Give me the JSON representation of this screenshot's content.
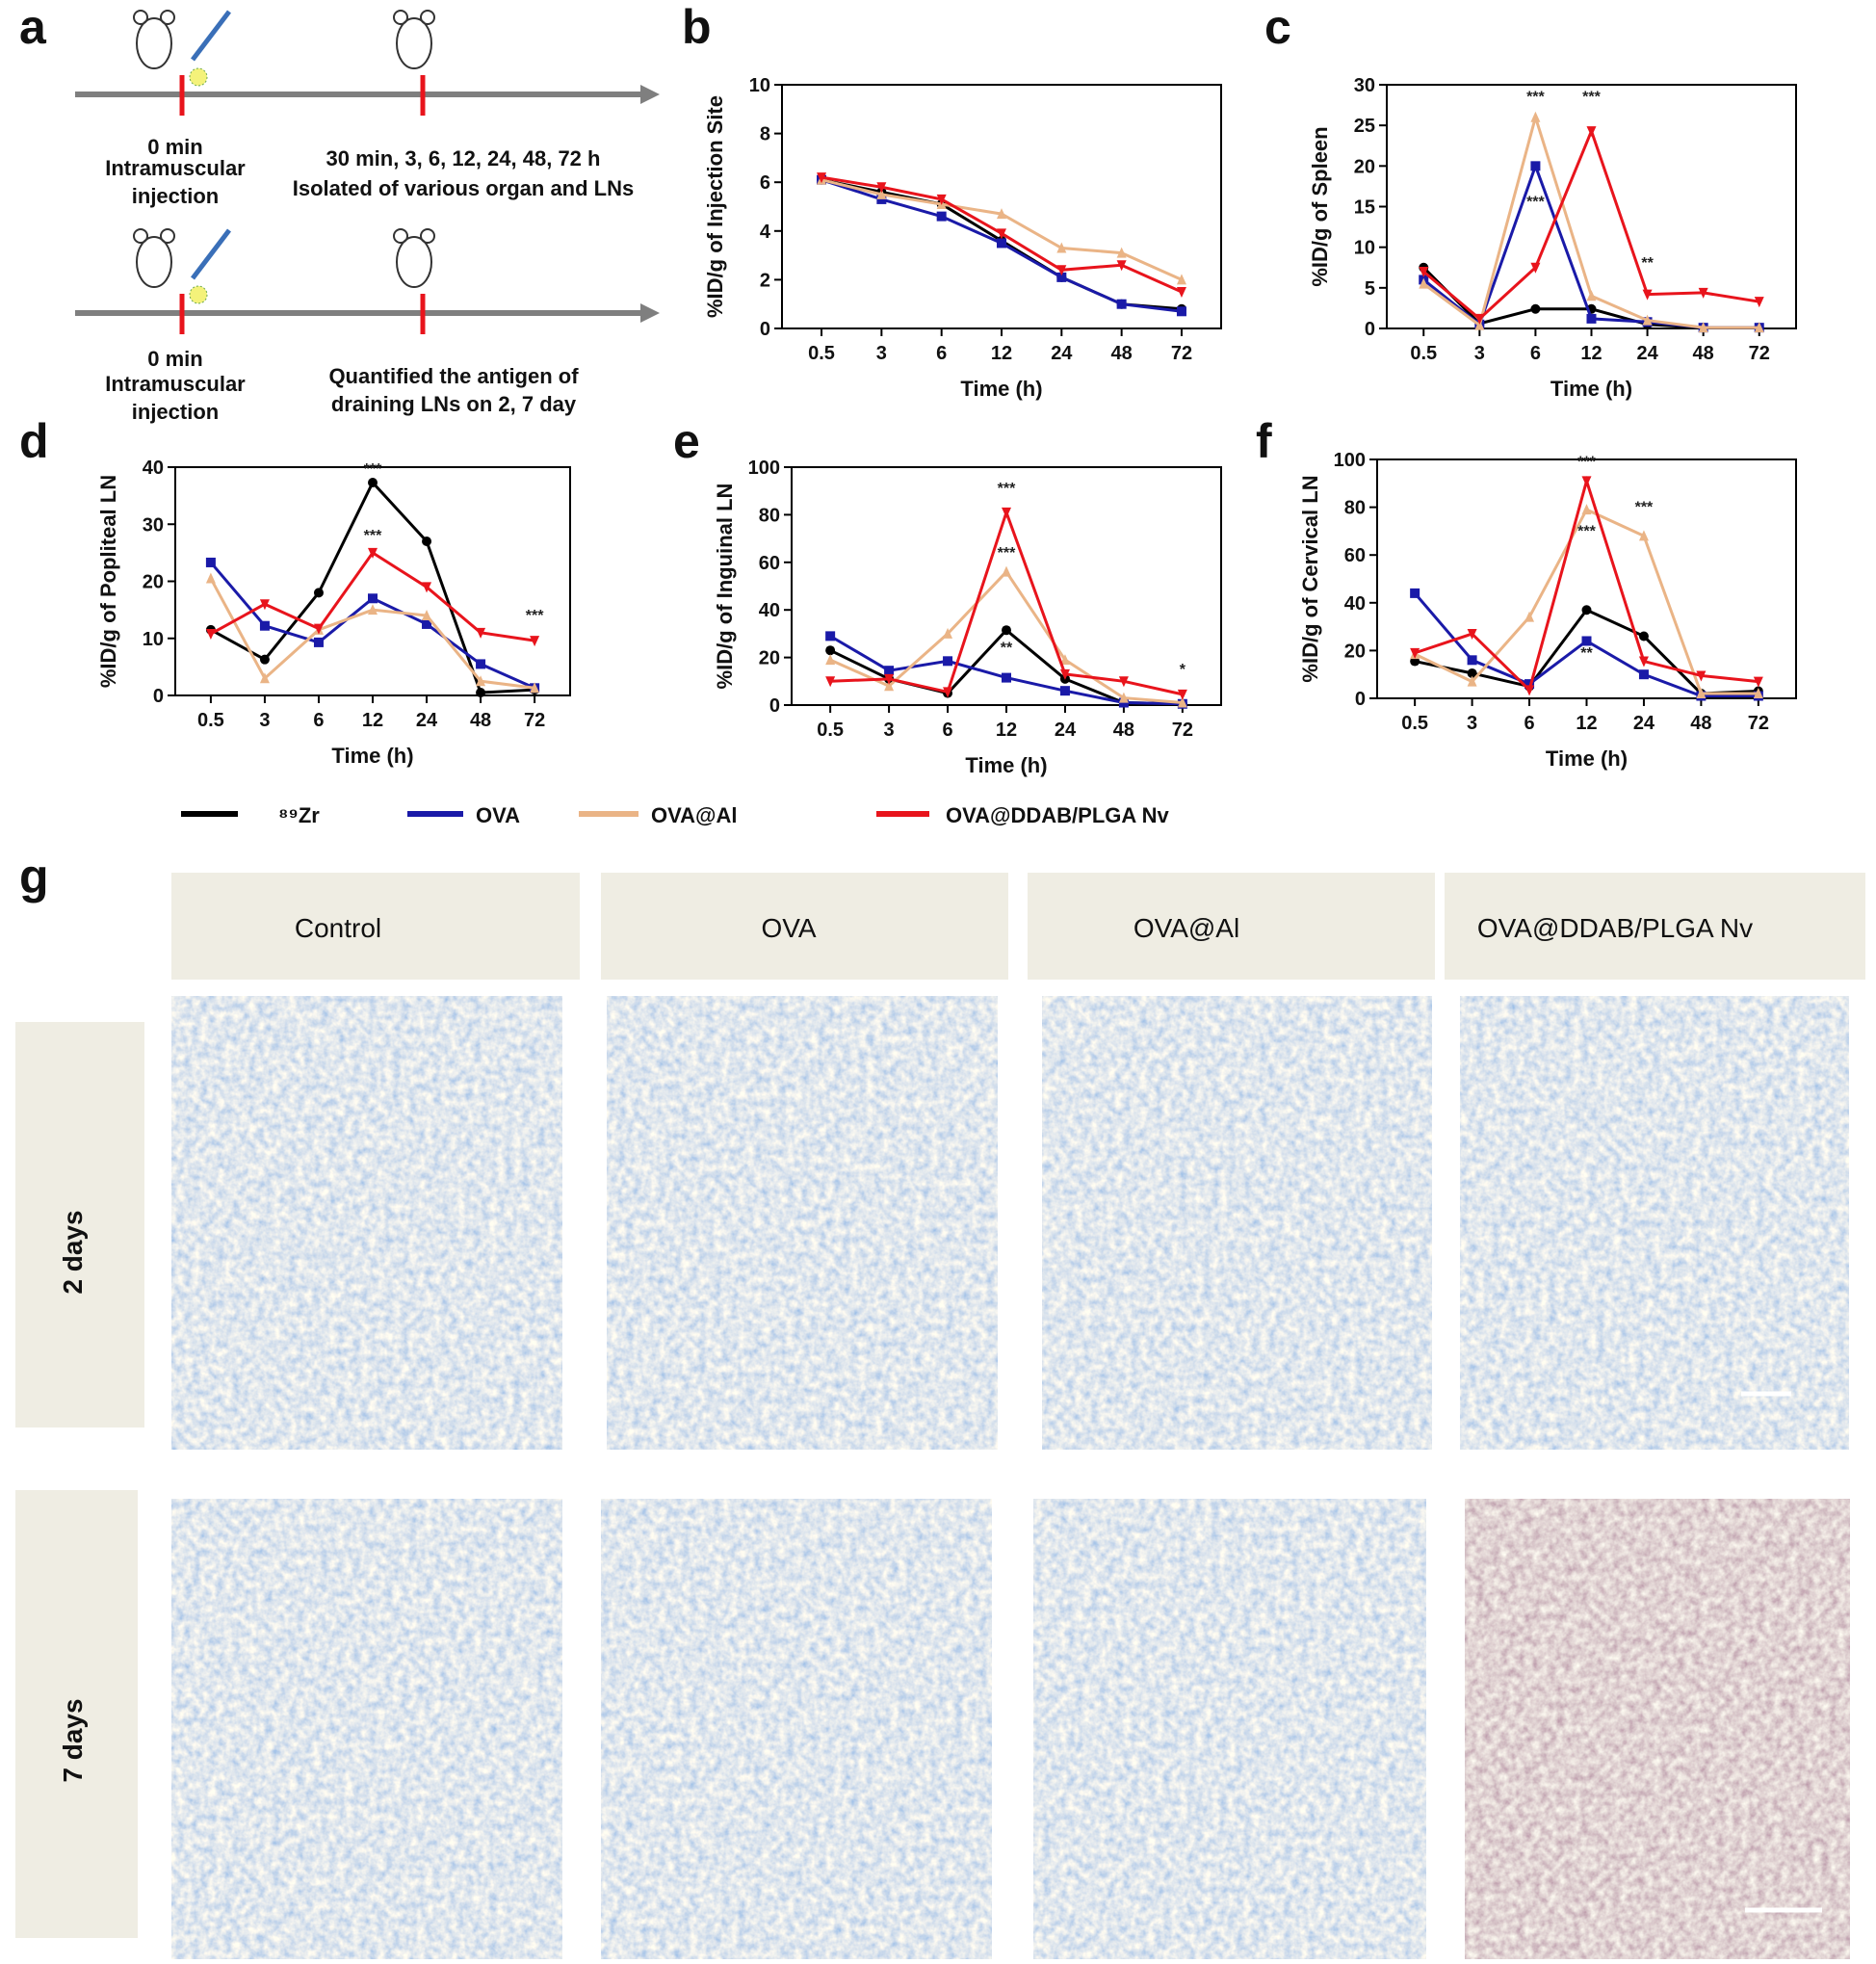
{
  "panel_labels": [
    "a",
    "b",
    "c",
    "d",
    "e",
    "f",
    "g"
  ],
  "timeline": {
    "top": {
      "start": [
        "0 min",
        "Intramuscular",
        "injection"
      ],
      "end": [
        "30 min, 3, 6, 12, 24, 48,  72 h",
        "Isolated of various organ and LNs"
      ]
    },
    "bottom": {
      "start": [
        "0 min",
        "Intramuscular",
        "injection"
      ],
      "end": [
        "Quantified the antigen of",
        "draining LNs on 2, 7 day"
      ]
    }
  },
  "legend": [
    "⁸⁹Zr",
    "OVA",
    "OVA@Al",
    "OVA@DDAB/PLGA Nv"
  ],
  "chart_data": [
    {
      "type": "line",
      "ylabel": "%ID/g of Injection Site",
      "xlabel": "Time (h)",
      "categories": [
        "0.5",
        "3",
        "6",
        "12",
        "24",
        "48",
        "72"
      ],
      "series": [
        {
          "color": "#000000",
          "values": [
            6.1,
            5.6,
            5.1,
            3.6,
            2.1,
            1.0,
            0.8
          ]
        },
        {
          "color": "#1a1aa8",
          "values": [
            6.1,
            5.3,
            4.6,
            3.5,
            2.1,
            1.0,
            0.7
          ]
        },
        {
          "color": "#eab486",
          "values": [
            6.1,
            5.5,
            5.1,
            4.7,
            3.3,
            3.1,
            2.0
          ]
        },
        {
          "color": "#e8141c",
          "values": [
            6.2,
            5.8,
            5.3,
            3.9,
            2.4,
            2.6,
            1.5
          ]
        }
      ],
      "ylim": [
        0,
        10
      ],
      "yticks": [
        0,
        2,
        4,
        6,
        8,
        10
      ]
    },
    {
      "type": "line",
      "ylabel": "%ID/g of Spleen",
      "xlabel": "Time (h)",
      "categories": [
        "0.5",
        "3",
        "6",
        "12",
        "24",
        "48",
        "72"
      ],
      "series": [
        {
          "color": "#000000",
          "values": [
            7.5,
            0.6,
            2.4,
            2.4,
            0.5,
            0.1,
            0.1
          ]
        },
        {
          "color": "#1a1aa8",
          "values": [
            6,
            0.5,
            20,
            1.2,
            0.8,
            0.1,
            0.1
          ]
        },
        {
          "color": "#eab486",
          "values": [
            5.5,
            0.4,
            26,
            4,
            1,
            0.1,
            0.1
          ]
        },
        {
          "color": "#e8141c",
          "values": [
            7,
            1.2,
            7.5,
            24.3,
            4.2,
            4.4,
            3.3
          ]
        }
      ],
      "ylim": [
        0,
        30
      ],
      "yticks": [
        0,
        5,
        10,
        15,
        20,
        25,
        30
      ],
      "annotations": [
        "***",
        "***",
        "***",
        "**"
      ]
    },
    {
      "type": "line",
      "ylabel": "%ID/g of Popliteal LN",
      "xlabel": "Time (h)",
      "categories": [
        "0.5",
        "3",
        "6",
        "12",
        "24",
        "48",
        "72"
      ],
      "series": [
        {
          "color": "#000000",
          "values": [
            11.5,
            6.3,
            18,
            37.3,
            27,
            0.5,
            1
          ]
        },
        {
          "color": "#1a1aa8",
          "values": [
            23.3,
            12.2,
            9.3,
            17,
            12.5,
            5.5,
            1.3
          ]
        },
        {
          "color": "#eab486",
          "values": [
            20.5,
            3,
            11.5,
            15,
            14,
            2.5,
            1.3
          ]
        },
        {
          "color": "#e8141c",
          "values": [
            10.8,
            16,
            11.7,
            25,
            19,
            11,
            9.6
          ]
        }
      ],
      "ylim": [
        0,
        40
      ],
      "yticks": [
        0,
        10,
        20,
        30,
        40
      ],
      "annotations": [
        "***",
        "***",
        "***"
      ]
    },
    {
      "type": "line",
      "ylabel": "%ID/g of Inguinal LN",
      "xlabel": "Time (h)",
      "categories": [
        "0.5",
        "3",
        "6",
        "12",
        "24",
        "48",
        "72"
      ],
      "series": [
        {
          "color": "#000000",
          "values": [
            23,
            11,
            5,
            31.5,
            11,
            1,
            0.5
          ]
        },
        {
          "color": "#1a1aa8",
          "values": [
            29,
            14.5,
            18.5,
            11.5,
            6,
            1,
            0.5
          ]
        },
        {
          "color": "#eab486",
          "values": [
            19,
            8,
            30,
            56,
            19,
            3,
            1
          ]
        },
        {
          "color": "#e8141c",
          "values": [
            10,
            11,
            5.5,
            81,
            13,
            10,
            4.5
          ]
        }
      ],
      "ylim": [
        0,
        100
      ],
      "yticks": [
        0,
        20,
        40,
        60,
        80,
        100
      ],
      "annotations": [
        "***",
        "***",
        "**",
        "*"
      ]
    },
    {
      "type": "line",
      "ylabel": "%ID/g of Cervical LN",
      "xlabel": "Time (h)",
      "categories": [
        "0.5",
        "3",
        "6",
        "12",
        "24",
        "48",
        "72"
      ],
      "series": [
        {
          "color": "#000000",
          "values": [
            15.5,
            10.5,
            5,
            37,
            26,
            2,
            3
          ]
        },
        {
          "color": "#1a1aa8",
          "values": [
            44,
            16,
            6,
            24,
            10,
            1,
            1
          ]
        },
        {
          "color": "#eab486",
          "values": [
            18.5,
            7,
            34,
            79,
            68,
            2,
            2
          ]
        },
        {
          "color": "#e8141c",
          "values": [
            19,
            27,
            3.5,
            91,
            15.5,
            9.5,
            7
          ]
        }
      ],
      "ylim": [
        0,
        100
      ],
      "yticks": [
        0,
        20,
        40,
        60,
        80,
        100
      ],
      "annotations": [
        "***",
        "***",
        "***",
        "**"
      ]
    }
  ],
  "histology": {
    "columns": [
      "Control",
      "OVA",
      "OVA@Al",
      "OVA@DDAB/PLGA Nv"
    ],
    "rows": [
      "2 days",
      "7 days"
    ]
  }
}
